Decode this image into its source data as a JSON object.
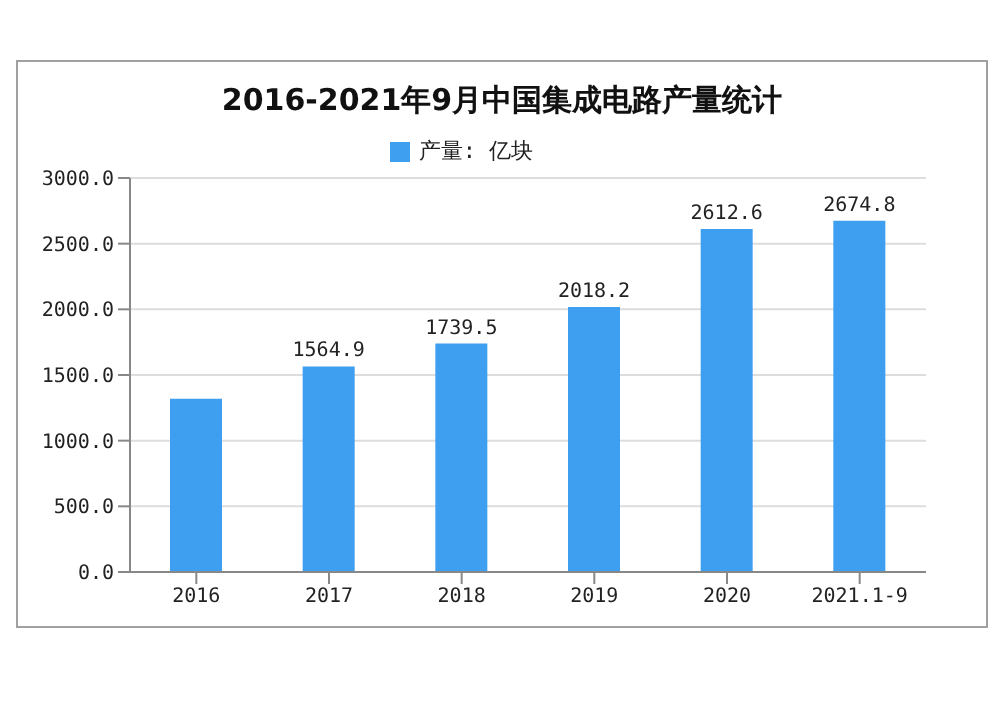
{
  "chart_data": {
    "type": "bar",
    "title": "2016-2021年9月中国集成电路产量统计",
    "categories": [
      "2016",
      "2017",
      "2018",
      "2019",
      "2020",
      "2021.1-9"
    ],
    "series": [
      {
        "name": "产量: 亿块",
        "color": "#3e9ef0",
        "values": [
          1320,
          1564.9,
          1739.5,
          2018.2,
          2612.6,
          2674.8
        ],
        "value_labels": [
          null,
          "1564.9",
          "1739.5",
          "2018.2",
          "2612.6",
          "2674.8"
        ]
      }
    ],
    "ylim": [
      0,
      3000
    ],
    "yticks": [
      {
        "value": 0,
        "label": "0.0"
      },
      {
        "value": 500,
        "label": "500.0"
      },
      {
        "value": 1000,
        "label": "1000.0"
      },
      {
        "value": 1500,
        "label": "1500.0"
      },
      {
        "value": 2000,
        "label": "2000.0"
      },
      {
        "value": 2500,
        "label": "2500.0"
      },
      {
        "value": 3000,
        "label": "3000.0"
      }
    ],
    "grid": "y",
    "legend": "top"
  }
}
